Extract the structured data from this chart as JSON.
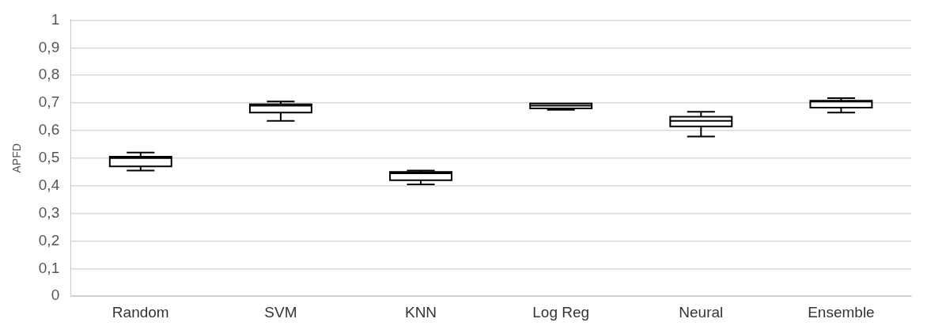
{
  "chart_data": {
    "type": "box",
    "ylabel": "APFD",
    "categories": [
      "Random",
      "SVM",
      "KNN",
      "Log Reg",
      "Neural",
      "Ensemble"
    ],
    "boxes": [
      {
        "low": 0.455,
        "q1": 0.47,
        "median": 0.5,
        "q3": 0.505,
        "high": 0.52
      },
      {
        "low": 0.635,
        "q1": 0.665,
        "median": 0.69,
        "q3": 0.695,
        "high": 0.705
      },
      {
        "low": 0.405,
        "q1": 0.42,
        "median": 0.445,
        "q3": 0.45,
        "high": 0.455
      },
      {
        "low": 0.675,
        "q1": 0.68,
        "median": 0.69,
        "q3": 0.698,
        "high": 0.698
      },
      {
        "low": 0.578,
        "q1": 0.615,
        "median": 0.635,
        "q3": 0.65,
        "high": 0.668
      },
      {
        "low": 0.665,
        "q1": 0.683,
        "median": 0.705,
        "q3": 0.708,
        "high": 0.717
      }
    ],
    "color": "#000000",
    "ylim": [
      0,
      1
    ],
    "yticks": [
      0,
      {
        "value": 0.1,
        "label": "0,1"
      },
      {
        "value": 0.2,
        "label": "0,2"
      },
      {
        "value": 0.3,
        "label": "0,3"
      },
      {
        "value": 0.4,
        "label": "0,4"
      },
      {
        "value": 0.5,
        "label": "0,5"
      },
      {
        "value": 0.6,
        "label": "0,6"
      },
      {
        "value": 0.7,
        "label": "0,7"
      },
      {
        "value": 0.8,
        "label": "0,8"
      },
      {
        "value": 0.9,
        "label": "0,9"
      },
      1
    ],
    "grid": "y"
  }
}
